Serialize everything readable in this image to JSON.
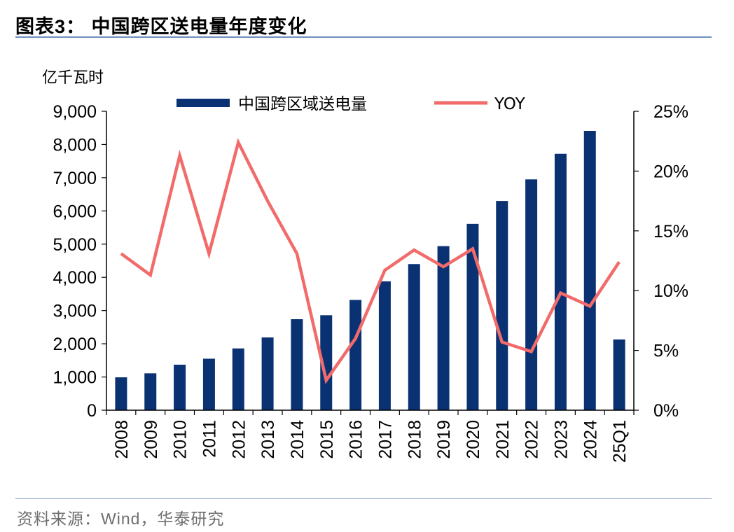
{
  "header": {
    "title": "图表3：  中国跨区送电量年度变化"
  },
  "footer": {
    "source": "资料来源：Wind，华泰研究"
  },
  "chart_data": {
    "type": "bar",
    "categories": [
      "2008",
      "2009",
      "2010",
      "2011",
      "2012",
      "2013",
      "2014",
      "2015",
      "2016",
      "2017",
      "2018",
      "2019",
      "2020",
      "2021",
      "2022",
      "2023",
      "2024",
      "25Q1"
    ],
    "ylabel_left": "亿千瓦时",
    "ylim_left": [
      0,
      9000
    ],
    "yticks_left": [
      "0",
      "1,000",
      "2,000",
      "3,000",
      "4,000",
      "5,000",
      "6,000",
      "7,000",
      "8,000",
      "9,000"
    ],
    "ylim_right": [
      0,
      25
    ],
    "yticks_right": [
      "0%",
      "5%",
      "10%",
      "15%",
      "20%",
      "25%"
    ],
    "legend_position": "top",
    "grid": false,
    "series": [
      {
        "name": "中国跨区域送电量",
        "type": "bar",
        "color": "#0a3273",
        "axis": "left",
        "values": [
          990,
          1110,
          1370,
          1550,
          1860,
          2190,
          2740,
          2860,
          3320,
          3880,
          4400,
          4940,
          5610,
          6300,
          6950,
          7720,
          8410,
          2130
        ]
      },
      {
        "name": "YOY",
        "type": "line",
        "color": "#f26b6b",
        "axis": "right",
        "values": [
          13.1,
          11.3,
          21.3,
          13.1,
          22.4,
          17.5,
          13.1,
          2.5,
          6.0,
          11.7,
          13.4,
          12.0,
          13.5,
          5.7,
          4.9,
          9.8,
          8.7,
          12.4
        ]
      }
    ]
  }
}
